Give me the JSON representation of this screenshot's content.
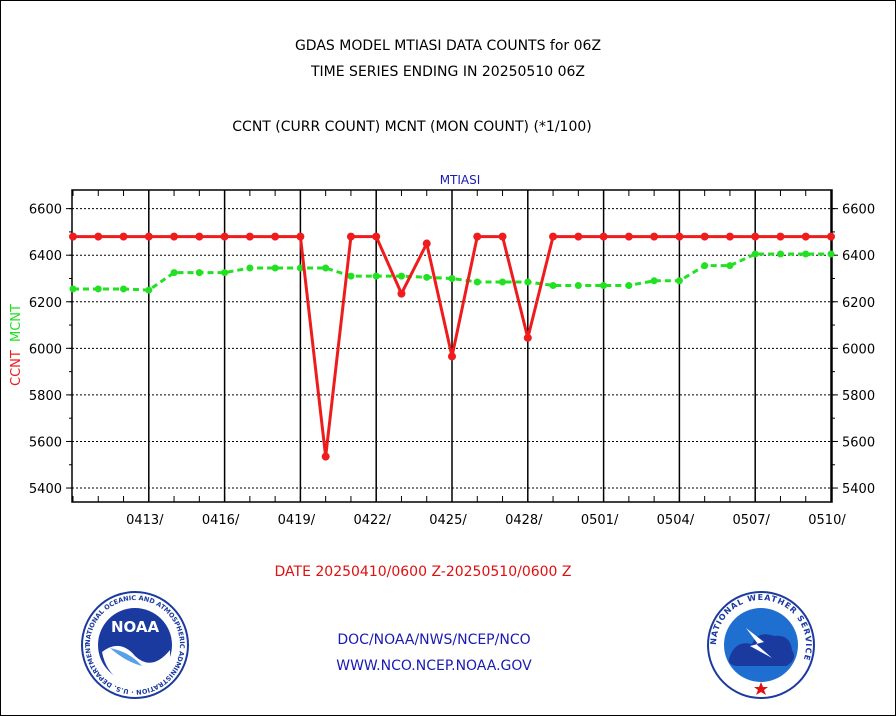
{
  "header": {
    "title_line1": "GDAS MODEL MTIASI DATA COUNTS for 06Z",
    "title_line2": "TIME SERIES ENDING IN 20250510 06Z",
    "subtitle": "CCNT (CURR COUNT) MCNT (MON COUNT) (*1/100)"
  },
  "footer": {
    "date_range": "DATE 20250410/0600 Z-20250510/0600 Z",
    "org_line": "DOC/NOAA/NWS/NCEP/NCO",
    "url_line": "WWW.NCO.NCEP.NOAA.GOV"
  },
  "logos": {
    "left_text": "NOAA",
    "left_ring_text": "NATIONAL OCEANIC AND ATMOSPHERIC ADMINISTRATION · U.S. DEPARTMENT OF COMMERCE",
    "right_ring_text": "NATIONAL WEATHER SERVICE"
  },
  "colors": {
    "ccnt": "#ee1c1c",
    "mcnt": "#22e022",
    "date_text": "#e01010",
    "footer_text": "#1a1ab4",
    "noaa_blue": "#1a3aa0",
    "nws_blue": "#1e6fd0"
  },
  "chart_data": {
    "type": "line",
    "title": "MTIASI",
    "ylabel_left": "CCNT",
    "ylabel_right": "MCNT",
    "ylim": [
      5340,
      6680
    ],
    "yticks": [
      5400,
      5600,
      5800,
      6000,
      6200,
      6400,
      6600
    ],
    "x_count": 31,
    "xtick_labels": [
      "0413/",
      "0416/",
      "0419/",
      "0422/",
      "0425/",
      "0428/",
      "0501/",
      "0504/",
      "0507/",
      "0510/"
    ],
    "xtick_index": [
      3,
      6,
      9,
      12,
      15,
      18,
      21,
      24,
      27,
      30
    ],
    "grid": true,
    "series": [
      {
        "name": "CCNT",
        "values": [
          6480,
          6480,
          6480,
          6480,
          6480,
          6480,
          6480,
          6480,
          6480,
          6480,
          5535,
          6480,
          6480,
          6235,
          6450,
          5965,
          6480,
          6480,
          6045,
          6480,
          6480,
          6480,
          6480,
          6480,
          6480,
          6480,
          6480,
          6480,
          6480,
          6480,
          6480
        ]
      },
      {
        "name": "MCNT",
        "values": [
          6255,
          6255,
          6255,
          6250,
          6325,
          6325,
          6325,
          6345,
          6345,
          6345,
          6345,
          6310,
          6310,
          6310,
          6305,
          6300,
          6285,
          6285,
          6285,
          6270,
          6270,
          6270,
          6270,
          6290,
          6290,
          6355,
          6355,
          6405,
          6405,
          6405,
          6405
        ]
      }
    ]
  }
}
